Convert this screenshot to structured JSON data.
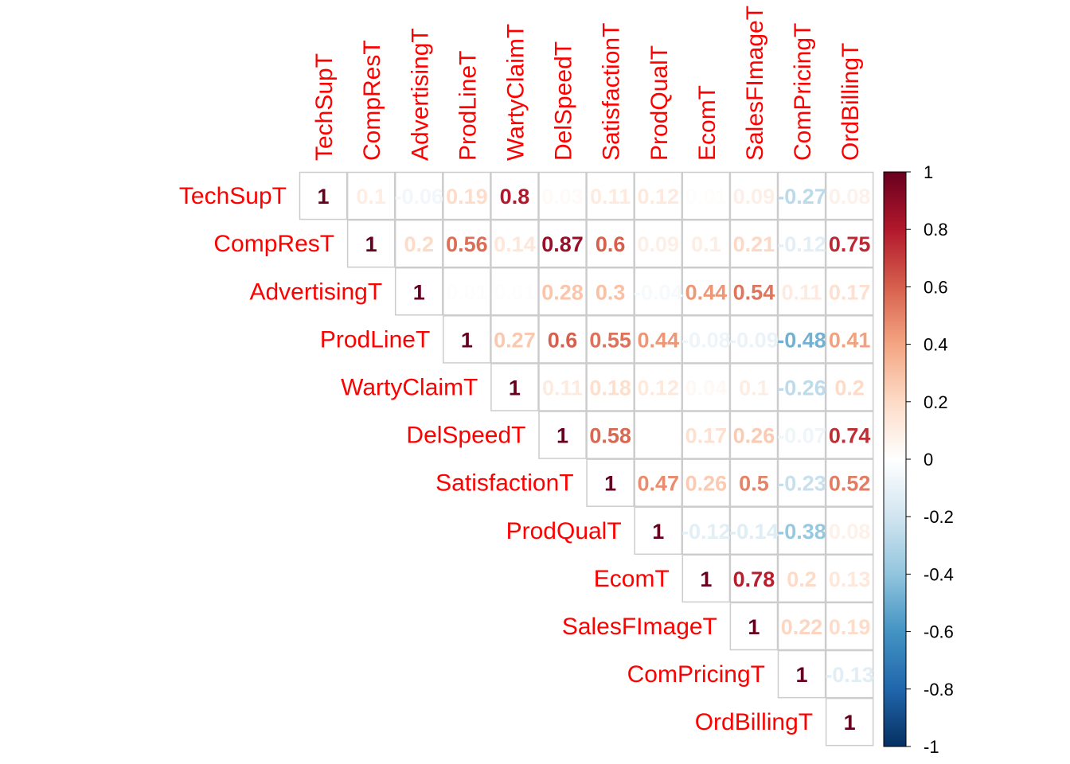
{
  "chart_data": {
    "type": "heatmap",
    "layout": "upper-triangle",
    "labels": [
      "TechSupT",
      "CompResT",
      "AdvertisingT",
      "ProdLineT",
      "WartyClaimT",
      "DelSpeedT",
      "SatisfactionT",
      "ProdQualT",
      "EcomT",
      "SalesFImageT",
      "ComPricingT",
      "OrdBillingT"
    ],
    "matrix": [
      [
        1,
        0.1,
        -0.06,
        0.19,
        0.8,
        0.03,
        0.11,
        0.12,
        0.01,
        0.09,
        -0.27,
        0.08
      ],
      [
        null,
        1,
        0.2,
        0.56,
        0.14,
        0.87,
        0.6,
        0.09,
        0.1,
        0.21,
        -0.12,
        0.75
      ],
      [
        null,
        null,
        1,
        0.01,
        0.01,
        0.28,
        0.3,
        -0.04,
        0.44,
        0.54,
        0.11,
        0.17
      ],
      [
        null,
        null,
        null,
        1,
        0.27,
        0.6,
        0.55,
        0.44,
        -0.08,
        -0.09,
        -0.48,
        0.41
      ],
      [
        null,
        null,
        null,
        null,
        1,
        0.11,
        0.18,
        0.12,
        0.04,
        0.1,
        -0.26,
        0.2
      ],
      [
        null,
        null,
        null,
        null,
        null,
        1,
        0.58,
        0.0,
        0.17,
        0.26,
        -0.07,
        0.74
      ],
      [
        null,
        null,
        null,
        null,
        null,
        null,
        1,
        0.47,
        0.26,
        0.5,
        -0.23,
        0.52
      ],
      [
        null,
        null,
        null,
        null,
        null,
        null,
        null,
        1,
        -0.12,
        -0.14,
        -0.38,
        0.08
      ],
      [
        null,
        null,
        null,
        null,
        null,
        null,
        null,
        null,
        1,
        0.78,
        0.2,
        0.13
      ],
      [
        null,
        null,
        null,
        null,
        null,
        null,
        null,
        null,
        null,
        1,
        0.22,
        0.19
      ],
      [
        null,
        null,
        null,
        null,
        null,
        null,
        null,
        null,
        null,
        null,
        1,
        -0.13
      ],
      [
        null,
        null,
        null,
        null,
        null,
        null,
        null,
        null,
        null,
        null,
        null,
        1
      ]
    ],
    "colorbar": {
      "range": [
        -1,
        1
      ],
      "ticks": [
        "1",
        "0.8",
        "0.6",
        "0.4",
        "0.2",
        "0",
        "-0.2",
        "-0.4",
        "-0.6",
        "-0.8",
        "-1"
      ],
      "colors": [
        "#67001F",
        "#B2182B",
        "#D6604D",
        "#F4A582",
        "#FDDBC7",
        "#FFFFFF",
        "#D1E5F0",
        "#92C5DE",
        "#4393C3",
        "#2166AC",
        "#053061"
      ]
    },
    "label_color": "#FF0000",
    "grid": true,
    "legend": "right"
  }
}
